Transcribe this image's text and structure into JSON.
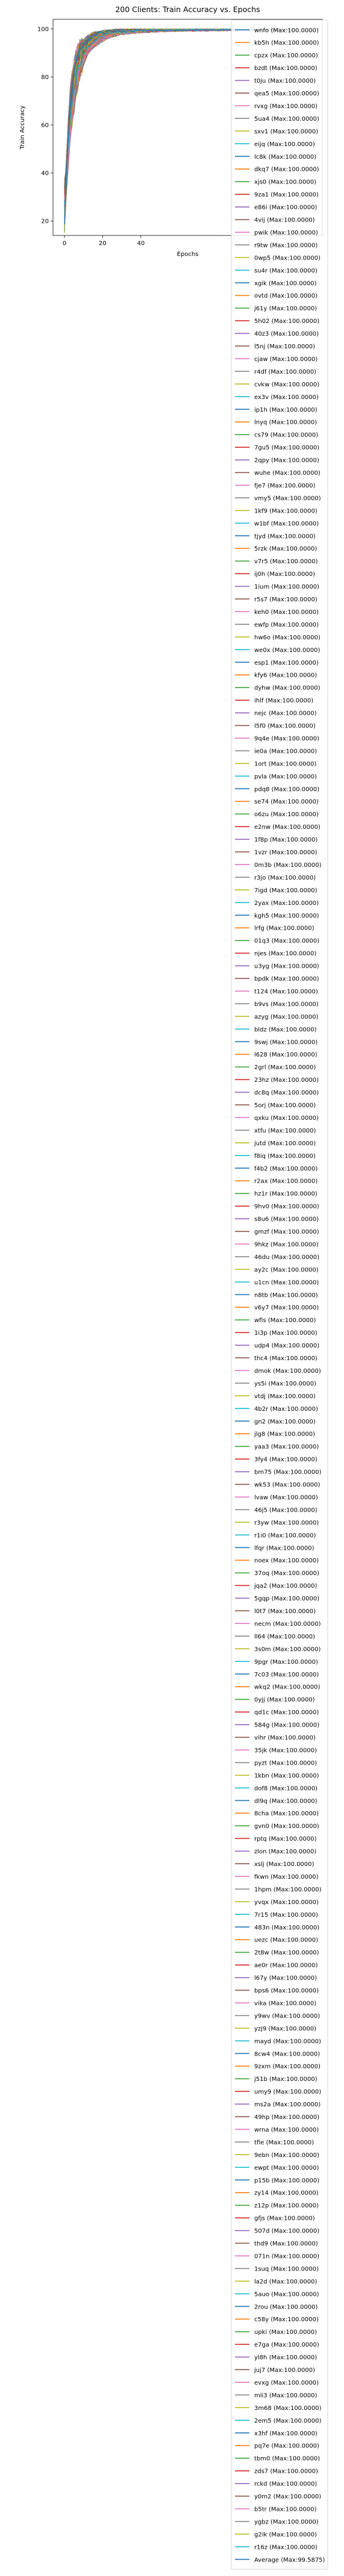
{
  "chart_data": {
    "type": "line",
    "title": "200 Clients: Train Accuracy vs. Epochs",
    "xlabel": "Epochs",
    "ylabel": "Train Accuracy",
    "xlim": [
      -6,
      135
    ],
    "ylim": [
      14,
      104
    ],
    "xticks": [
      0,
      20,
      40
    ],
    "yticks": [
      20,
      40,
      60,
      80,
      100
    ],
    "grid": false,
    "legend_placement": "right",
    "palette": [
      "#1f77b4",
      "#ff7f0e",
      "#2ca02c",
      "#d62728",
      "#9467bd",
      "#8c564b",
      "#e377c2",
      "#7f7f7f",
      "#bcbd22",
      "#17becf"
    ],
    "curve_model": {
      "epochs": [
        0,
        2,
        4,
        6,
        8,
        10,
        15,
        20,
        30,
        40,
        60,
        80,
        100,
        120
      ],
      "typical_accuracy": [
        22,
        55,
        72,
        82,
        88,
        92,
        96,
        98,
        99,
        99.5,
        99.8,
        100,
        100,
        100
      ]
    },
    "series": [
      {
        "name": "wnfo (Max:100.0000)",
        "max": 100.0
      },
      {
        "name": "kb5h (Max:100.0000)",
        "max": 100.0
      },
      {
        "name": "cpzx (Max:100.0000)",
        "max": 100.0
      },
      {
        "name": "bzdt (Max:100.0000)",
        "max": 100.0
      },
      {
        "name": "t0ju (Max:100.0000)",
        "max": 100.0
      },
      {
        "name": "qea5 (Max:100.0000)",
        "max": 100.0
      },
      {
        "name": "rvxg (Max:100.0000)",
        "max": 100.0
      },
      {
        "name": "5ua4 (Max:100.0000)",
        "max": 100.0
      },
      {
        "name": "sxv1 (Max:100.0000)",
        "max": 100.0
      },
      {
        "name": "eijq (Max:100.0000)",
        "max": 100.0
      },
      {
        "name": "lc8k (Max:100.0000)",
        "max": 100.0
      },
      {
        "name": "dkq7 (Max:100.0000)",
        "max": 100.0
      },
      {
        "name": "xjs0 (Max:100.0000)",
        "max": 100.0
      },
      {
        "name": "9za1 (Max:100.0000)",
        "max": 100.0
      },
      {
        "name": "e86i (Max:100.0000)",
        "max": 100.0
      },
      {
        "name": "4vij (Max:100.0000)",
        "max": 100.0
      },
      {
        "name": "pwik (Max:100.0000)",
        "max": 100.0
      },
      {
        "name": "r9tw (Max:100.0000)",
        "max": 100.0
      },
      {
        "name": "0wp5 (Max:100.0000)",
        "max": 100.0
      },
      {
        "name": "su4r (Max:100.0000)",
        "max": 100.0
      },
      {
        "name": "xgik (Max:100.0000)",
        "max": 100.0
      },
      {
        "name": "ovtd (Max:100.0000)",
        "max": 100.0
      },
      {
        "name": "j61y (Max:100.0000)",
        "max": 100.0
      },
      {
        "name": "5h02 (Max:100.0000)",
        "max": 100.0
      },
      {
        "name": "40z3 (Max:100.0000)",
        "max": 100.0
      },
      {
        "name": "l5nj (Max:100.0000)",
        "max": 100.0
      },
      {
        "name": "cjaw (Max:100.0000)",
        "max": 100.0
      },
      {
        "name": "r4df (Max:100.0000)",
        "max": 100.0
      },
      {
        "name": "cvkw (Max:100.0000)",
        "max": 100.0
      },
      {
        "name": "ex3v (Max:100.0000)",
        "max": 100.0
      },
      {
        "name": "ip1h (Max:100.0000)",
        "max": 100.0
      },
      {
        "name": "lnyq (Max:100.0000)",
        "max": 100.0
      },
      {
        "name": "cs79 (Max:100.0000)",
        "max": 100.0
      },
      {
        "name": "7gu5 (Max:100.0000)",
        "max": 100.0
      },
      {
        "name": "2qpy (Max:100.0000)",
        "max": 100.0
      },
      {
        "name": "wuhe (Max:100.0000)",
        "max": 100.0
      },
      {
        "name": "fje7 (Max:100.0000)",
        "max": 100.0
      },
      {
        "name": "vmy5 (Max:100.0000)",
        "max": 100.0
      },
      {
        "name": "1kf9 (Max:100.0000)",
        "max": 100.0
      },
      {
        "name": "w1bf (Max:100.0000)",
        "max": 100.0
      },
      {
        "name": "tjyd (Max:100.0000)",
        "max": 100.0
      },
      {
        "name": "5rzk (Max:100.0000)",
        "max": 100.0
      },
      {
        "name": "v7r5 (Max:100.0000)",
        "max": 100.0
      },
      {
        "name": "ij0h (Max:100.0000)",
        "max": 100.0
      },
      {
        "name": "1ium (Max:100.0000)",
        "max": 100.0
      },
      {
        "name": "r5s7 (Max:100.0000)",
        "max": 100.0
      },
      {
        "name": "keh0 (Max:100.0000)",
        "max": 100.0
      },
      {
        "name": "ewfp (Max:100.0000)",
        "max": 100.0
      },
      {
        "name": "hw6o (Max:100.0000)",
        "max": 100.0
      },
      {
        "name": "we0x (Max:100.0000)",
        "max": 100.0
      },
      {
        "name": "esp1 (Max:100.0000)",
        "max": 100.0
      },
      {
        "name": "kfy6 (Max:100.0000)",
        "max": 100.0
      },
      {
        "name": "dyhw (Max:100.0000)",
        "max": 100.0
      },
      {
        "name": "ihlf (Max:100.0000)",
        "max": 100.0
      },
      {
        "name": "nejc (Max:100.0000)",
        "max": 100.0
      },
      {
        "name": "l5f0 (Max:100.0000)",
        "max": 100.0
      },
      {
        "name": "9q4e (Max:100.0000)",
        "max": 100.0
      },
      {
        "name": "ie0a (Max:100.0000)",
        "max": 100.0
      },
      {
        "name": "1ort (Max:100.0000)",
        "max": 100.0
      },
      {
        "name": "pvla (Max:100.0000)",
        "max": 100.0
      },
      {
        "name": "pdq8 (Max:100.0000)",
        "max": 100.0
      },
      {
        "name": "se74 (Max:100.0000)",
        "max": 100.0
      },
      {
        "name": "o6zu (Max:100.0000)",
        "max": 100.0
      },
      {
        "name": "e2nw (Max:100.0000)",
        "max": 100.0
      },
      {
        "name": "1f8p (Max:100.0000)",
        "max": 100.0
      },
      {
        "name": "1vzr (Max:100.0000)",
        "max": 100.0
      },
      {
        "name": "0m3b (Max:100.0000)",
        "max": 100.0
      },
      {
        "name": "r3jo (Max:100.0000)",
        "max": 100.0
      },
      {
        "name": "7igd (Max:100.0000)",
        "max": 100.0
      },
      {
        "name": "2yax (Max:100.0000)",
        "max": 100.0
      },
      {
        "name": "kgh5 (Max:100.0000)",
        "max": 100.0
      },
      {
        "name": "lrfg (Max:100.0000)",
        "max": 100.0
      },
      {
        "name": "01q3 (Max:100.0000)",
        "max": 100.0
      },
      {
        "name": "njes (Max:100.0000)",
        "max": 100.0
      },
      {
        "name": "u3yg (Max:100.0000)",
        "max": 100.0
      },
      {
        "name": "bpdk (Max:100.0000)",
        "max": 100.0
      },
      {
        "name": "t124 (Max:100.0000)",
        "max": 100.0
      },
      {
        "name": "b9vs (Max:100.0000)",
        "max": 100.0
      },
      {
        "name": "azyg (Max:100.0000)",
        "max": 100.0
      },
      {
        "name": "bldz (Max:100.0000)",
        "max": 100.0
      },
      {
        "name": "9swj (Max:100.0000)",
        "max": 100.0
      },
      {
        "name": "l628 (Max:100.0000)",
        "max": 100.0
      },
      {
        "name": "2grl (Max:100.0000)",
        "max": 100.0
      },
      {
        "name": "23hz (Max:100.0000)",
        "max": 100.0
      },
      {
        "name": "dc8q (Max:100.0000)",
        "max": 100.0
      },
      {
        "name": "5orj (Max:100.0000)",
        "max": 100.0
      },
      {
        "name": "qxku (Max:100.0000)",
        "max": 100.0
      },
      {
        "name": "xtfu (Max:100.0000)",
        "max": 100.0
      },
      {
        "name": "jutd (Max:100.0000)",
        "max": 100.0
      },
      {
        "name": "f8iq (Max:100.0000)",
        "max": 100.0
      },
      {
        "name": "f4b2 (Max:100.0000)",
        "max": 100.0
      },
      {
        "name": "r2ax (Max:100.0000)",
        "max": 100.0
      },
      {
        "name": "hz1r (Max:100.0000)",
        "max": 100.0
      },
      {
        "name": "9hv0 (Max:100.0000)",
        "max": 100.0
      },
      {
        "name": "s8u6 (Max:100.0000)",
        "max": 100.0
      },
      {
        "name": "gmzf (Max:100.0000)",
        "max": 100.0
      },
      {
        "name": "9hkz (Max:100.0000)",
        "max": 100.0
      },
      {
        "name": "46du (Max:100.0000)",
        "max": 100.0
      },
      {
        "name": "ay2c (Max:100.0000)",
        "max": 100.0
      },
      {
        "name": "u1cn (Max:100.0000)",
        "max": 100.0
      },
      {
        "name": "n8tb (Max:100.0000)",
        "max": 100.0
      },
      {
        "name": "v6y7 (Max:100.0000)",
        "max": 100.0
      },
      {
        "name": "wfis (Max:100.0000)",
        "max": 100.0
      },
      {
        "name": "1i3p (Max:100.0000)",
        "max": 100.0
      },
      {
        "name": "udp4 (Max:100.0000)",
        "max": 100.0
      },
      {
        "name": "thc4 (Max:100.0000)",
        "max": 100.0
      },
      {
        "name": "dmok (Max:100.0000)",
        "max": 100.0
      },
      {
        "name": "ys5i (Max:100.0000)",
        "max": 100.0
      },
      {
        "name": "vtdj (Max:100.0000)",
        "max": 100.0
      },
      {
        "name": "4b2r (Max:100.0000)",
        "max": 100.0
      },
      {
        "name": "gn2 (Max:100.0000)",
        "max": 100.0
      },
      {
        "name": "jlg8 (Max:100.0000)",
        "max": 100.0
      },
      {
        "name": "yaa3 (Max:100.0000)",
        "max": 100.0
      },
      {
        "name": "3fy4 (Max:100.0000)",
        "max": 100.0
      },
      {
        "name": "bm75 (Max:100.0000)",
        "max": 100.0
      },
      {
        "name": "wk53 (Max:100.0000)",
        "max": 100.0
      },
      {
        "name": "lvaw (Max:100.0000)",
        "max": 100.0
      },
      {
        "name": "46j5 (Max:100.0000)",
        "max": 100.0
      },
      {
        "name": "r3yw (Max:100.0000)",
        "max": 100.0
      },
      {
        "name": "r1i0 (Max:100.0000)",
        "max": 100.0
      },
      {
        "name": "lfqr (Max:100.0000)",
        "max": 100.0
      },
      {
        "name": "noex (Max:100.0000)",
        "max": 100.0
      },
      {
        "name": "37oq (Max:100.0000)",
        "max": 100.0
      },
      {
        "name": "jqa2 (Max:100.0000)",
        "max": 100.0
      },
      {
        "name": "5gqp (Max:100.0000)",
        "max": 100.0
      },
      {
        "name": "l0t7 (Max:100.0000)",
        "max": 100.0
      },
      {
        "name": "necm (Max:100.0000)",
        "max": 100.0
      },
      {
        "name": "ll64 (Max:100.0000)",
        "max": 100.0
      },
      {
        "name": "3s0m (Max:100.0000)",
        "max": 100.0
      },
      {
        "name": "9pgr (Max:100.0000)",
        "max": 100.0
      },
      {
        "name": "7c03 (Max:100.0000)",
        "max": 100.0
      },
      {
        "name": "wkq2 (Max:100.0000)",
        "max": 100.0
      },
      {
        "name": "0yjj (Max:100.0000)",
        "max": 100.0
      },
      {
        "name": "qd1c (Max:100.0000)",
        "max": 100.0
      },
      {
        "name": "584g (Max:100.0000)",
        "max": 100.0
      },
      {
        "name": "vihr (Max:100.0000)",
        "max": 100.0
      },
      {
        "name": "35jk (Max:100.0000)",
        "max": 100.0
      },
      {
        "name": "pyzt (Max:100.0000)",
        "max": 100.0
      },
      {
        "name": "1kbn (Max:100.0000)",
        "max": 100.0
      },
      {
        "name": "dof8 (Max:100.0000)",
        "max": 100.0
      },
      {
        "name": "dl9q (Max:100.0000)",
        "max": 100.0
      },
      {
        "name": "8cha (Max:100.0000)",
        "max": 100.0
      },
      {
        "name": "gvn0 (Max:100.0000)",
        "max": 100.0
      },
      {
        "name": "rptq (Max:100.0000)",
        "max": 100.0
      },
      {
        "name": "zlon (Max:100.0000)",
        "max": 100.0
      },
      {
        "name": "xslj (Max:100.0000)",
        "max": 100.0
      },
      {
        "name": "fkwn (Max:100.0000)",
        "max": 100.0
      },
      {
        "name": "1hpm (Max:100.0000)",
        "max": 100.0
      },
      {
        "name": "yvqx (Max:100.0000)",
        "max": 100.0
      },
      {
        "name": "7r15 (Max:100.0000)",
        "max": 100.0
      },
      {
        "name": "483n (Max:100.0000)",
        "max": 100.0
      },
      {
        "name": "uezc (Max:100.0000)",
        "max": 100.0
      },
      {
        "name": "2t8w (Max:100.0000)",
        "max": 100.0
      },
      {
        "name": "ae0r (Max:100.0000)",
        "max": 100.0
      },
      {
        "name": "l67y (Max:100.0000)",
        "max": 100.0
      },
      {
        "name": "bps6 (Max:100.0000)",
        "max": 100.0
      },
      {
        "name": "vika (Max:100.0000)",
        "max": 100.0
      },
      {
        "name": "y9wv (Max:100.0000)",
        "max": 100.0
      },
      {
        "name": "yzj9 (Max:100.0000)",
        "max": 100.0
      },
      {
        "name": "mayd (Max:100.0000)",
        "max": 100.0
      },
      {
        "name": "8cw4 (Max:100.0000)",
        "max": 100.0
      },
      {
        "name": "9zxm (Max:100.0000)",
        "max": 100.0
      },
      {
        "name": "j51b (Max:100.0000)",
        "max": 100.0
      },
      {
        "name": "umy9 (Max:100.0000)",
        "max": 100.0
      },
      {
        "name": "ms2a (Max:100.0000)",
        "max": 100.0
      },
      {
        "name": "49hp (Max:100.0000)",
        "max": 100.0
      },
      {
        "name": "wrna (Max:100.0000)",
        "max": 100.0
      },
      {
        "name": "tfie (Max:100.0000)",
        "max": 100.0
      },
      {
        "name": "9ebn (Max:100.0000)",
        "max": 100.0
      },
      {
        "name": "ewpt (Max:100.0000)",
        "max": 100.0
      },
      {
        "name": "p15b (Max:100.0000)",
        "max": 100.0
      },
      {
        "name": "zy14 (Max:100.0000)",
        "max": 100.0
      },
      {
        "name": "z12p (Max:100.0000)",
        "max": 100.0
      },
      {
        "name": "gfjs (Max:100.0000)",
        "max": 100.0
      },
      {
        "name": "507d (Max:100.0000)",
        "max": 100.0
      },
      {
        "name": "thd9 (Max:100.0000)",
        "max": 100.0
      },
      {
        "name": "071n (Max:100.0000)",
        "max": 100.0
      },
      {
        "name": "1suq (Max:100.0000)",
        "max": 100.0
      },
      {
        "name": "la2d (Max:100.0000)",
        "max": 100.0
      },
      {
        "name": "5auo (Max:100.0000)",
        "max": 100.0
      },
      {
        "name": "2rou (Max:100.0000)",
        "max": 100.0
      },
      {
        "name": "c58y (Max:100.0000)",
        "max": 100.0
      },
      {
        "name": "upki (Max:100.0000)",
        "max": 100.0
      },
      {
        "name": "e7ga (Max:100.0000)",
        "max": 100.0
      },
      {
        "name": "yl8h (Max:100.0000)",
        "max": 100.0
      },
      {
        "name": "juj7 (Max:100.0000)",
        "max": 100.0
      },
      {
        "name": "evxg (Max:100.0000)",
        "max": 100.0
      },
      {
        "name": "mli3 (Max:100.0000)",
        "max": 100.0
      },
      {
        "name": "3m68 (Max:100.0000)",
        "max": 100.0
      },
      {
        "name": "2em5 (Max:100.0000)",
        "max": 100.0
      },
      {
        "name": "x3hf (Max:100.0000)",
        "max": 100.0
      },
      {
        "name": "pq7e (Max:100.0000)",
        "max": 100.0
      },
      {
        "name": "tbm0 (Max:100.0000)",
        "max": 100.0
      },
      {
        "name": "zds7 (Max:100.0000)",
        "max": 100.0
      },
      {
        "name": "rckd (Max:100.0000)",
        "max": 100.0
      },
      {
        "name": "y0m2 (Max:100.0000)",
        "max": 100.0
      },
      {
        "name": "b5tr (Max:100.0000)",
        "max": 100.0
      },
      {
        "name": "ygbz (Max:100.0000)",
        "max": 100.0
      },
      {
        "name": "g2ik (Max:100.0000)",
        "max": 100.0
      },
      {
        "name": "r16z (Max:100.0000)",
        "max": 100.0
      },
      {
        "name": "Average (Max:99.5875)",
        "max": 99.5875,
        "is_average": true
      }
    ]
  }
}
